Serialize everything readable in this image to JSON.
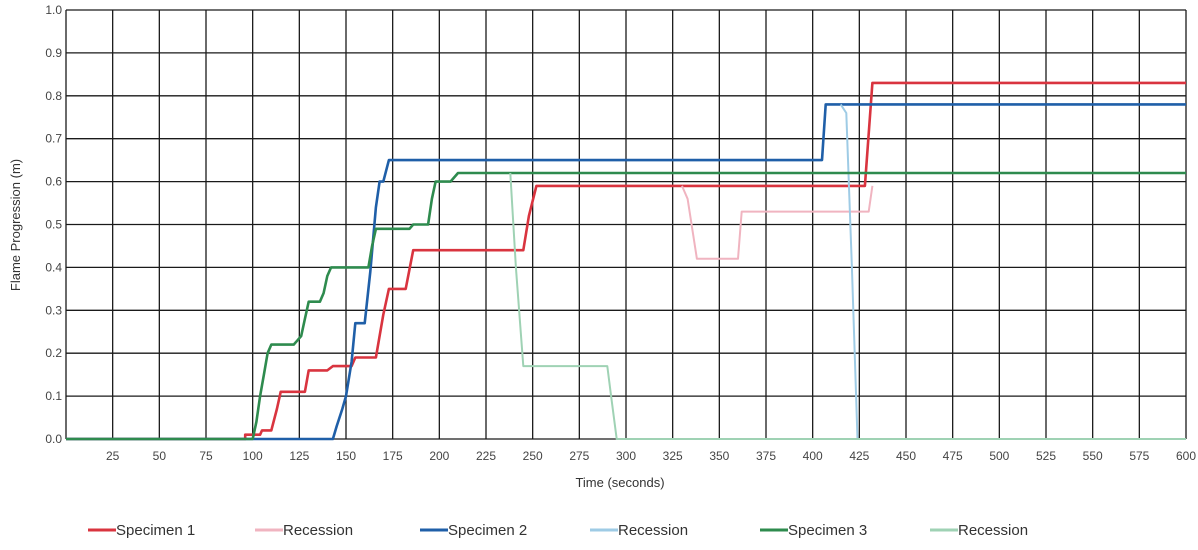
{
  "chart_data": {
    "type": "line",
    "xlabel": "Time (seconds)",
    "ylabel": "Flame Progression (m)",
    "xlim": [
      0,
      600
    ],
    "ylim": [
      0,
      1.0
    ],
    "x_ticks": [
      "25",
      "50",
      "75",
      "100",
      "125",
      "150",
      "175",
      "200",
      "225",
      "250",
      "275",
      "300",
      "325",
      "350",
      "375",
      "400",
      "425",
      "450",
      "475",
      "500",
      "525",
      "550",
      "575",
      "600"
    ],
    "y_ticks": [
      "0.0",
      "0.1",
      "0.2",
      "0.3",
      "0.4",
      "0.5",
      "0.6",
      "0.7",
      "0.8",
      "0.9",
      "1.0"
    ],
    "grid": true,
    "legend_position": "bottom",
    "series": [
      {
        "name": "Specimen 1",
        "color": "#d9343f",
        "width": 2.6,
        "points": [
          [
            0,
            0
          ],
          [
            96,
            0
          ],
          [
            96,
            0.01
          ],
          [
            104,
            0.01
          ],
          [
            105,
            0.02
          ],
          [
            110,
            0.02
          ],
          [
            113,
            0.07
          ],
          [
            115,
            0.11
          ],
          [
            128,
            0.11
          ],
          [
            130,
            0.16
          ],
          [
            140,
            0.16
          ],
          [
            143,
            0.17
          ],
          [
            153,
            0.17
          ],
          [
            155,
            0.19
          ],
          [
            166,
            0.19
          ],
          [
            170,
            0.29
          ],
          [
            173,
            0.35
          ],
          [
            182,
            0.35
          ],
          [
            186,
            0.44
          ],
          [
            245,
            0.44
          ],
          [
            248,
            0.52
          ],
          [
            252,
            0.59
          ],
          [
            428,
            0.59
          ],
          [
            432,
            0.83
          ],
          [
            600,
            0.83
          ]
        ]
      },
      {
        "name": "Recession",
        "color": "#f0b4c0",
        "width": 2,
        "points": [
          [
            330,
            0.59
          ],
          [
            333,
            0.56
          ],
          [
            338,
            0.42
          ],
          [
            360,
            0.42
          ],
          [
            362,
            0.53
          ],
          [
            430,
            0.53
          ],
          [
            432,
            0.59
          ]
        ]
      },
      {
        "name": "Specimen 2",
        "color": "#1f5fa8",
        "width": 2.6,
        "points": [
          [
            0,
            0
          ],
          [
            143,
            0
          ],
          [
            145,
            0.03
          ],
          [
            148,
            0.07
          ],
          [
            150,
            0.1
          ],
          [
            153,
            0.18
          ],
          [
            155,
            0.27
          ],
          [
            160,
            0.27
          ],
          [
            163,
            0.39
          ],
          [
            166,
            0.54
          ],
          [
            168,
            0.6
          ],
          [
            170,
            0.6
          ],
          [
            173,
            0.65
          ],
          [
            405,
            0.65
          ],
          [
            407,
            0.78
          ],
          [
            600,
            0.78
          ]
        ]
      },
      {
        "name": "Recession",
        "color": "#9ecbe5",
        "width": 2,
        "points": [
          [
            415,
            0.78
          ],
          [
            418,
            0.76
          ],
          [
            421,
            0.4
          ],
          [
            424,
            0.0
          ],
          [
            600,
            0.0
          ]
        ]
      },
      {
        "name": "Specimen 3",
        "color": "#2e8b4e",
        "width": 2.6,
        "points": [
          [
            0,
            0
          ],
          [
            100,
            0
          ],
          [
            102,
            0.04
          ],
          [
            104,
            0.1
          ],
          [
            106,
            0.15
          ],
          [
            108,
            0.2
          ],
          [
            110,
            0.22
          ],
          [
            122,
            0.22
          ],
          [
            124,
            0.23
          ],
          [
            126,
            0.24
          ],
          [
            128,
            0.28
          ],
          [
            130,
            0.32
          ],
          [
            136,
            0.32
          ],
          [
            138,
            0.34
          ],
          [
            140,
            0.38
          ],
          [
            142,
            0.4
          ],
          [
            162,
            0.4
          ],
          [
            164,
            0.45
          ],
          [
            166,
            0.49
          ],
          [
            184,
            0.49
          ],
          [
            186,
            0.5
          ],
          [
            194,
            0.5
          ],
          [
            196,
            0.56
          ],
          [
            198,
            0.6
          ],
          [
            206,
            0.6
          ],
          [
            210,
            0.62
          ],
          [
            600,
            0.62
          ]
        ]
      },
      {
        "name": "Recession",
        "color": "#9fd2b4",
        "width": 2,
        "points": [
          [
            238,
            0.62
          ],
          [
            241,
            0.4
          ],
          [
            245,
            0.17
          ],
          [
            290,
            0.17
          ],
          [
            292,
            0.1
          ],
          [
            295,
            0.0
          ],
          [
            600,
            0.0
          ]
        ]
      }
    ]
  }
}
